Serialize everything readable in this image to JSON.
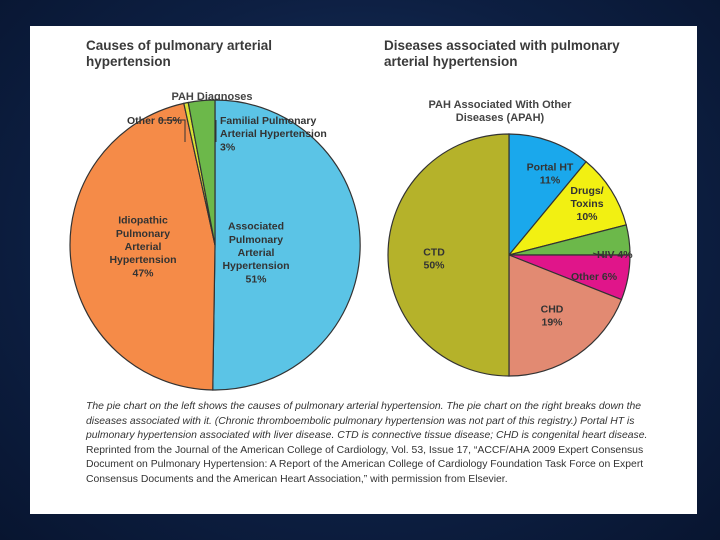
{
  "left": {
    "title_line1": "Causes of pulmonary arterial",
    "title_line2": "hypertension",
    "subtitle": "PAH Diagnoses"
  },
  "right": {
    "title_line1": "Diseases associated with pulmonary",
    "title_line2": "arterial hypertension",
    "subtitle_line1": "PAH Associated With Other",
    "subtitle_line2": "Diseases (APAH)"
  },
  "caption": {
    "italic_text": "The pie chart on the left shows the causes of pulmonary arterial hypertension. The pie chart on the right breaks down the diseases associated with it. (Chronic thromboembolic pulmonary hypertension was not part of this registry.) Portal HT is pulmonary hypertension associated with liver disease. CTD is connective tissue disease; CHD is congenital heart disease.",
    "plain_text": " Reprinted from the Journal of the American College of Cardiology, Vol. 53, Issue 17, “ACCF/AHA 2009 Expert Consensus Document on Pulmonary Hypertension: A Report of the American College of Cardiology Foundation Task Force on Expert Consensus Documents and the American Heart Association,” with permission from Elsevier."
  },
  "chart_data": [
    {
      "type": "pie",
      "title": "Causes of pulmonary arterial hypertension",
      "subtitle": "PAH Diagnoses",
      "slices": [
        {
          "name": "Associated Pulmonary Arterial Hypertension",
          "value": 51,
          "label_lines": [
            "Associated",
            "Pulmonary",
            "Arterial",
            "Hypertension",
            "51%"
          ],
          "color": "#5bc4e6"
        },
        {
          "name": "Idiopathic Pulmonary Arterial Hypertension",
          "value": 47,
          "label_lines": [
            "Idiopathic",
            "Pulmonary",
            "Arterial",
            "Hypertension",
            "47%"
          ],
          "color": "#f58b48"
        },
        {
          "name": "Other",
          "value": 0.5,
          "label_lines": [
            "Other 0.5%"
          ],
          "color": "#d9e234"
        },
        {
          "name": "Familial Pulmonary Arterial Hypertension",
          "value": 3,
          "label_lines": [
            "Familial Pulmonary",
            "Arterial Hypertension",
            "3%"
          ],
          "color": "#6cb84a"
        }
      ]
    },
    {
      "type": "pie",
      "title": "Diseases associated with pulmonary arterial hypertension",
      "subtitle": "PAH Associated With Other Diseases (APAH)",
      "slices": [
        {
          "name": "Portal HT",
          "value": 11,
          "label_lines": [
            "Portal HT",
            "11%"
          ],
          "color": "#1aa8ec"
        },
        {
          "name": "Drugs/Toxins",
          "value": 10,
          "label_lines": [
            "Drugs/",
            "Toxins",
            "10%"
          ],
          "color": "#f2f012"
        },
        {
          "name": "HIV",
          "value": 4,
          "label_lines": [
            "HIV 4%"
          ],
          "color": "#6cb84a"
        },
        {
          "name": "Other",
          "value": 6,
          "label_lines": [
            "Other 6%"
          ],
          "color": "#e0158a"
        },
        {
          "name": "CHD",
          "value": 19,
          "label_lines": [
            "CHD",
            "19%"
          ],
          "color": "#e28a72"
        },
        {
          "name": "CTD",
          "value": 50,
          "label_lines": [
            "CTD",
            "50%"
          ],
          "color": "#b5b22a"
        }
      ]
    }
  ]
}
